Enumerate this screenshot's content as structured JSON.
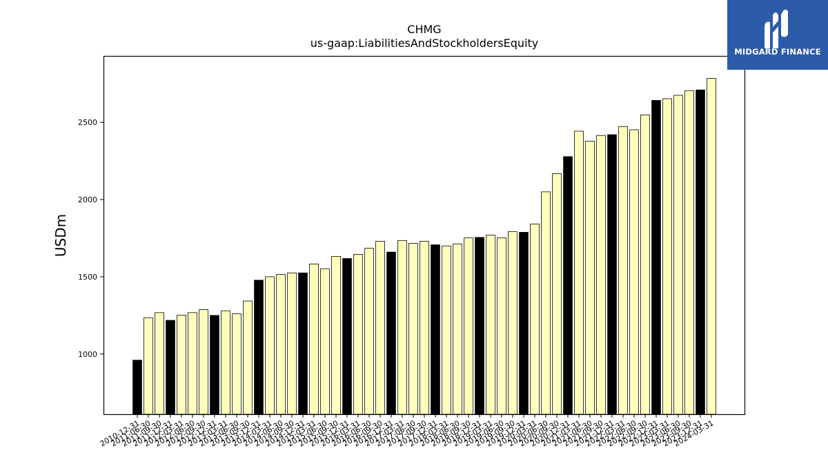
{
  "logo": {
    "text": "MIDGARD FINANCE",
    "bg_color": "#2b5aa8",
    "icon": "midgard-m-icon"
  },
  "chart_data": {
    "type": "bar",
    "title": "CHMG",
    "subtitle": "us-gaap:LiabilitiesAndStockholdersEquity",
    "xlabel": "",
    "ylabel": "USDm",
    "ylim": [
      610,
      2930
    ],
    "yticks": [
      1000,
      1500,
      2000,
      2500
    ],
    "grid": false,
    "colors": {
      "annual": "#000000",
      "quarter": "#ffffbb",
      "edge": "#000000"
    },
    "categories": [
      "2010-12-31",
      "2011-06-30",
      "2011-09-30",
      "2011-12-31",
      "2012-03-31",
      "2012-06-30",
      "2012-09-30",
      "2012-12-31",
      "2013-03-31",
      "2013-06-30",
      "2013-09-30",
      "2013-12-31",
      "2014-03-31",
      "2014-06-30",
      "2014-09-30",
      "2014-12-31",
      "2015-03-31",
      "2015-06-30",
      "2015-09-30",
      "2015-12-31",
      "2016-03-31",
      "2016-06-30",
      "2016-09-30",
      "2016-12-31",
      "2017-03-31",
      "2017-06-30",
      "2017-09-30",
      "2017-12-31",
      "2018-03-31",
      "2018-06-30",
      "2018-09-30",
      "2018-12-31",
      "2019-03-31",
      "2019-06-30",
      "2019-09-30",
      "2019-12-31",
      "2020-03-31",
      "2020-06-30",
      "2020-09-30",
      "2020-12-31",
      "2021-03-31",
      "2021-06-30",
      "2021-09-30",
      "2021-12-31",
      "2022-03-31",
      "2022-06-30",
      "2022-09-30",
      "2022-12-31",
      "2023-03-31",
      "2023-06-30",
      "2023-09-30",
      "2023-12-31",
      "2024-03-31"
    ],
    "values": [
      960,
      1235,
      1268,
      1218,
      1252,
      1268,
      1287,
      1250,
      1280,
      1260,
      1343,
      1478,
      1500,
      1515,
      1525,
      1525,
      1583,
      1552,
      1632,
      1618,
      1645,
      1685,
      1730,
      1660,
      1735,
      1717,
      1730,
      1707,
      1700,
      1713,
      1752,
      1755,
      1770,
      1752,
      1793,
      1788,
      1842,
      2050,
      2168,
      2278,
      2443,
      2378,
      2415,
      2420,
      2473,
      2452,
      2548,
      2642,
      2653,
      2675,
      2705,
      2710,
      2785
    ],
    "annual_flags": [
      1,
      0,
      0,
      1,
      0,
      0,
      0,
      1,
      0,
      0,
      0,
      1,
      0,
      0,
      0,
      1,
      0,
      0,
      0,
      1,
      0,
      0,
      0,
      1,
      0,
      0,
      0,
      1,
      0,
      0,
      0,
      1,
      0,
      0,
      0,
      1,
      0,
      0,
      0,
      1,
      0,
      0,
      0,
      1,
      0,
      0,
      0,
      1,
      0,
      0,
      0,
      1,
      0
    ]
  }
}
